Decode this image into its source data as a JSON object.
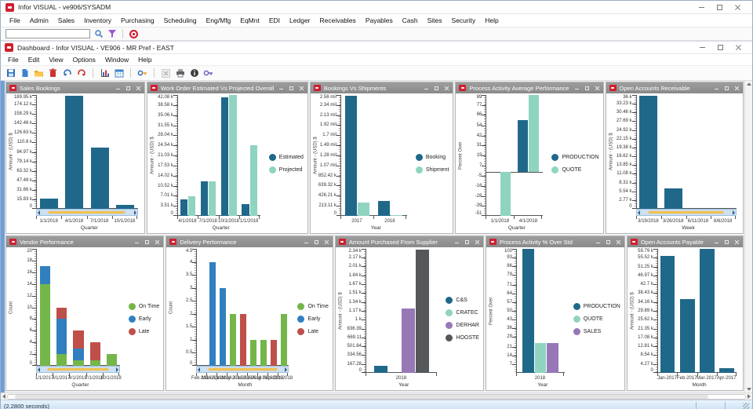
{
  "app": {
    "title": "Infor VISUAL - ve906/SYSADM",
    "menu": [
      "File",
      "Admin",
      "Sales",
      "Inventory",
      "Purchasing",
      "Scheduling",
      "Eng/Mfg",
      "EqMnt",
      "EDI",
      "Ledger",
      "Receivables",
      "Payables",
      "Cash",
      "Sites",
      "Security",
      "Help"
    ]
  },
  "toolbar": {
    "search_value": "",
    "icons": [
      "search-lookup",
      "filter-funnel",
      "record-stop"
    ]
  },
  "dashboard_window": {
    "title": "Dashboard - Infor VISUAL - VE906 - MR Pref - EAST",
    "menu": [
      "File",
      "Edit",
      "View",
      "Options",
      "Window",
      "Help"
    ],
    "toolbar_icons": [
      "save",
      "new-document",
      "open-folder",
      "delete",
      "undo",
      "redo",
      "bar-chart",
      "calendar-grid",
      "key",
      "close-disabled",
      "print",
      "info",
      "key-alt"
    ]
  },
  "status_bar": {
    "text": "(2.2800 seconds)"
  },
  "colors": {
    "infor_red": "#cf2030",
    "panel_title_bg": "#8f8f8f",
    "dark_blue": "#20688a",
    "mint": "#8fd4c1",
    "green": "#74b64a",
    "early_blue": "#3080c0",
    "late_red": "#bf4f49",
    "purple": "#9678b6",
    "dark_gray": "#54585a",
    "scroll_thumb": "#f2c14e"
  },
  "chart_data": [
    {
      "type": "bar",
      "title": "Sales Bookings",
      "ylabel": "Amount - (USD) $",
      "xlabel": "Quarter",
      "ymin": 0,
      "ymax": 189950,
      "yticks": [
        {
          "v": 189950,
          "t": "189.95 k"
        },
        {
          "v": 174120,
          "t": "174.12 k"
        },
        {
          "v": 158290,
          "t": "158.29 k"
        },
        {
          "v": 142460,
          "t": "142.46 k"
        },
        {
          "v": 126630,
          "t": "126.63 k"
        },
        {
          "v": 110800,
          "t": "110.8 k"
        },
        {
          "v": 94970,
          "t": "94.97 k"
        },
        {
          "v": 79140,
          "t": "79.14 k"
        },
        {
          "v": 63320,
          "t": "63.32 k"
        },
        {
          "v": 47490,
          "t": "47.49 k"
        },
        {
          "v": 31660,
          "t": "31.66 k"
        },
        {
          "v": 15830,
          "t": "15.83 k"
        },
        {
          "v": 0,
          "t": "0"
        }
      ],
      "categories": [
        "1/1/2018",
        "4/1/2018",
        "7/1/2018",
        "10/1/2018"
      ],
      "series": [
        {
          "name": "Amount",
          "color": "#20688a",
          "values": [
            17500,
            188500,
            102000,
            7000
          ]
        }
      ],
      "stacked": false,
      "legend": false,
      "scrollbar": true
    },
    {
      "type": "bar",
      "title": "Work Order Estimated Vs Projected Overall",
      "ylabel": "Amount - (USD) $",
      "xlabel": "Quarter",
      "ymin": 0,
      "ymax": 42080,
      "yticks": [
        {
          "v": 42080,
          "t": "42.08 k"
        },
        {
          "v": 38580,
          "t": "38.58 k"
        },
        {
          "v": 35060,
          "t": "35.06 k"
        },
        {
          "v": 31550,
          "t": "31.55 k"
        },
        {
          "v": 28040,
          "t": "28.04 k"
        },
        {
          "v": 24540,
          "t": "24.54 k"
        },
        {
          "v": 21030,
          "t": "21.03 k"
        },
        {
          "v": 17530,
          "t": "17.53 k"
        },
        {
          "v": 14020,
          "t": "14.02 k"
        },
        {
          "v": 10520,
          "t": "10.52 k"
        },
        {
          "v": 7010,
          "t": "7.01 k"
        },
        {
          "v": 3510,
          "t": "3.51 k"
        },
        {
          "v": 0,
          "t": "0"
        }
      ],
      "categories": [
        "4/1/2018",
        "7/1/2018",
        "10/1/2018",
        "1/1/2019"
      ],
      "series": [
        {
          "name": "Estimated",
          "color": "#20688a",
          "values": [
            5700,
            11900,
            41300,
            4200
          ]
        },
        {
          "name": "Projected",
          "color": "#8fd4c1",
          "values": [
            6700,
            11900,
            42000,
            24500
          ]
        }
      ],
      "stacked": false,
      "legend": true,
      "scrollbar": false
    },
    {
      "type": "bar",
      "title": "Bookings Vs Shipments",
      "ylabel": "Amount - (USD) $",
      "xlabel": "Year",
      "ymin": 0,
      "ymax": 2556000,
      "yticks": [
        {
          "v": 2556000,
          "t": "2.56 mil"
        },
        {
          "v": 2344000,
          "t": "2.34 mil"
        },
        {
          "v": 2131000,
          "t": "2.13 mil"
        },
        {
          "v": 1918000,
          "t": "1.92 mil"
        },
        {
          "v": 1705000,
          "t": "1.7 mil"
        },
        {
          "v": 1492000,
          "t": "1.49 mil"
        },
        {
          "v": 1279000,
          "t": "1.28 mil"
        },
        {
          "v": 1066000,
          "t": "1.07 mil"
        },
        {
          "v": 852420,
          "t": "852.42 k"
        },
        {
          "v": 639320,
          "t": "639.32 k"
        },
        {
          "v": 426210,
          "t": "426.21 k"
        },
        {
          "v": 213110,
          "t": "213.11 k"
        },
        {
          "v": 0,
          "t": "0"
        }
      ],
      "categories": [
        "2017",
        "2018"
      ],
      "series": [
        {
          "name": "Booking",
          "color": "#20688a",
          "values": [
            2545000,
            320000
          ]
        },
        {
          "name": "Shipment",
          "color": "#8fd4c1",
          "values": [
            275000,
            10000
          ]
        }
      ],
      "stacked": false,
      "legend": true,
      "scrollbar": false
    },
    {
      "type": "bar",
      "title": "Process Activity Average Performance",
      "ylabel": "Percent Over",
      "xlabel": "Quarter",
      "ymin": -51,
      "ymax": 89,
      "yticks": [
        {
          "v": 89,
          "t": "89"
        },
        {
          "v": 77,
          "t": "77"
        },
        {
          "v": 66,
          "t": "66"
        },
        {
          "v": 54,
          "t": "54"
        },
        {
          "v": 42,
          "t": "42"
        },
        {
          "v": 31,
          "t": "31"
        },
        {
          "v": 19,
          "t": "19"
        },
        {
          "v": 7,
          "t": "7"
        },
        {
          "v": -5,
          "t": "-5"
        },
        {
          "v": -16,
          "t": "-16"
        },
        {
          "v": -28,
          "t": "-28"
        },
        {
          "v": -39,
          "t": "-39"
        },
        {
          "v": -51,
          "t": "-51"
        }
      ],
      "categories": [
        "1/1/2018",
        "4/1/2018"
      ],
      "series": [
        {
          "name": "PRODUCTION",
          "color": "#20688a",
          "values": [
            0,
            60
          ]
        },
        {
          "name": "QUOTE",
          "color": "#8fd4c1",
          "values": [
            -51,
            89
          ]
        }
      ],
      "stacked": false,
      "legend": true,
      "scrollbar": false
    },
    {
      "type": "bar",
      "title": "Open Accounts Receivable",
      "ylabel": "Amount - (USD) $",
      "xlabel": "Week",
      "ymin": 0,
      "ymax": 36000,
      "yticks": [
        {
          "v": 36000,
          "t": "36 k"
        },
        {
          "v": 33230,
          "t": "33.23 k"
        },
        {
          "v": 30460,
          "t": "30.46 k"
        },
        {
          "v": 27690,
          "t": "27.69 k"
        },
        {
          "v": 24920,
          "t": "24.92 k"
        },
        {
          "v": 22150,
          "t": "22.15 k"
        },
        {
          "v": 19380,
          "t": "19.38 k"
        },
        {
          "v": 16620,
          "t": "16.62 k"
        },
        {
          "v": 13850,
          "t": "13.85 k"
        },
        {
          "v": 11080,
          "t": "11.08 k"
        },
        {
          "v": 8310,
          "t": "8.31 k"
        },
        {
          "v": 5540,
          "t": "5.54 k"
        },
        {
          "v": 2770,
          "t": "2.77 k"
        },
        {
          "v": 0,
          "t": "0"
        }
      ],
      "categories": [
        "3/19/2018",
        "3/26/2018",
        "6/11/2018",
        "8/6/2018"
      ],
      "series": [
        {
          "name": "Amount",
          "color": "#20688a",
          "values": [
            35700,
            6400,
            0,
            0
          ]
        }
      ],
      "stacked": false,
      "legend": false,
      "scrollbar": true
    },
    {
      "type": "bar",
      "title": "Vendor Performance",
      "ylabel": "Count",
      "xlabel": "Quarter",
      "ymin": 0,
      "ymax": 20,
      "yticks": [
        {
          "v": 20,
          "t": "20"
        },
        {
          "v": 18,
          "t": "18"
        },
        {
          "v": 16,
          "t": "16"
        },
        {
          "v": 14,
          "t": "14"
        },
        {
          "v": 12,
          "t": "12"
        },
        {
          "v": 10,
          "t": "10"
        },
        {
          "v": 8,
          "t": "8"
        },
        {
          "v": 6,
          "t": "6"
        },
        {
          "v": 4,
          "t": "4"
        },
        {
          "v": 2,
          "t": "2"
        },
        {
          "v": 0,
          "t": "0"
        }
      ],
      "categories": [
        "1/1/2017",
        "4/1/2017",
        "4/1/2018",
        "7/1/2018",
        "10/1/2018"
      ],
      "series": [
        {
          "name": "On Time",
          "color": "#74b64a",
          "values": [
            14,
            2,
            1,
            1,
            2
          ]
        },
        {
          "name": "Early",
          "color": "#3080c0",
          "values": [
            3,
            6,
            2,
            0,
            0
          ]
        },
        {
          "name": "Late",
          "color": "#bf4f49",
          "values": [
            0,
            2,
            3,
            3,
            0
          ]
        }
      ],
      "stacked": true,
      "legend": true,
      "scrollbar": true
    },
    {
      "type": "bar",
      "title": "Delivery Performance",
      "ylabel": "Count",
      "xlabel": "Month",
      "ymin": 0,
      "ymax": 4.5,
      "yticks": [
        {
          "v": 4.5,
          "t": "4.5"
        },
        {
          "v": 4,
          "t": "4"
        },
        {
          "v": 3.5,
          "t": "3.5"
        },
        {
          "v": 3,
          "t": "3"
        },
        {
          "v": 2.5,
          "t": "2.5"
        },
        {
          "v": 2,
          "t": "2"
        },
        {
          "v": 1.5,
          "t": "1.5"
        },
        {
          "v": 1,
          "t": "1"
        },
        {
          "v": 0.5,
          "t": "0.5"
        },
        {
          "v": 0,
          "t": "0"
        }
      ],
      "categories": [
        "Feb-2018",
        "Mar-2018",
        "Apr-2018",
        "May-2018",
        "Jun-2018",
        "Jul-2018",
        "Aug-2018",
        "Sep-2018",
        "Oct-2018"
      ],
      "series": [
        {
          "name": "On Time",
          "color": "#74b64a",
          "values": [
            0,
            0,
            0,
            2,
            0,
            1,
            1,
            0,
            2
          ]
        },
        {
          "name": "Early",
          "color": "#3080c0",
          "values": [
            0,
            4,
            3,
            0,
            0,
            0,
            0,
            0,
            0
          ]
        },
        {
          "name": "Late",
          "color": "#bf4f49",
          "values": [
            0,
            0,
            0,
            0,
            2,
            0,
            0,
            1,
            0
          ]
        }
      ],
      "stacked": true,
      "legend": true,
      "scrollbar": true
    },
    {
      "type": "bar",
      "title": "Amount Purchased From Supplier",
      "ylabel": "Amount - (USD) $",
      "xlabel": "Year",
      "ymin": 0,
      "ymax": 2340,
      "yticks": [
        {
          "v": 2340,
          "t": "2.34 k"
        },
        {
          "v": 2170,
          "t": "2.17 k"
        },
        {
          "v": 2010,
          "t": "2.01 k"
        },
        {
          "v": 1840,
          "t": "1.84 k"
        },
        {
          "v": 1670,
          "t": "1.67 k"
        },
        {
          "v": 1510,
          "t": "1.51 k"
        },
        {
          "v": 1340,
          "t": "1.34 k"
        },
        {
          "v": 1170,
          "t": "1.17 k"
        },
        {
          "v": 1000,
          "t": "1 k"
        },
        {
          "v": 836.39,
          "t": "836.39"
        },
        {
          "v": 669.11,
          "t": "669.11"
        },
        {
          "v": 501.84,
          "t": "501.84"
        },
        {
          "v": 334.56,
          "t": "334.56"
        },
        {
          "v": 167.28,
          "t": "167.28"
        },
        {
          "v": 0,
          "t": "0"
        }
      ],
      "categories": [
        "2018"
      ],
      "series": [
        {
          "name": "C&S",
          "color": "#20688a",
          "values": [
            140
          ]
        },
        {
          "name": "CRATEC",
          "color": "#8fd4c1",
          "values": [
            0
          ]
        },
        {
          "name": "DERHAR",
          "color": "#9678b6",
          "values": [
            1210
          ]
        },
        {
          "name": "HOOSTE",
          "color": "#54585a",
          "values": [
            2330
          ]
        }
      ],
      "stacked": false,
      "legend": true,
      "scrollbar": false
    },
    {
      "type": "bar",
      "title": "Process Activity % Over Std",
      "ylabel": "Percent Over",
      "xlabel": "Year",
      "ymin": 0,
      "ymax": 100,
      "yticks": [
        {
          "v": 100,
          "t": "100"
        },
        {
          "v": 93,
          "t": "93"
        },
        {
          "v": 86,
          "t": "86"
        },
        {
          "v": 79,
          "t": "79"
        },
        {
          "v": 71,
          "t": "71"
        },
        {
          "v": 64,
          "t": "64"
        },
        {
          "v": 57,
          "t": "57"
        },
        {
          "v": 50,
          "t": "50"
        },
        {
          "v": 43,
          "t": "43"
        },
        {
          "v": 36,
          "t": "36"
        },
        {
          "v": 29,
          "t": "29"
        },
        {
          "v": 21,
          "t": "21"
        },
        {
          "v": 14,
          "t": "14"
        },
        {
          "v": 7,
          "t": "7"
        }
      ],
      "categories": [
        "2018"
      ],
      "series": [
        {
          "name": "PRODUCTION",
          "color": "#20688a",
          "values": [
            100
          ]
        },
        {
          "name": "QUOTE",
          "color": "#8fd4c1",
          "values": [
            24
          ]
        },
        {
          "name": "SALES",
          "color": "#9678b6",
          "values": [
            24
          ]
        }
      ],
      "stacked": false,
      "legend": true,
      "scrollbar": false
    },
    {
      "type": "bar",
      "title": "Open Accounts Payable",
      "ylabel": "Amount - (USD) $",
      "xlabel": "Month",
      "ymin": 0,
      "ymax": 59790,
      "yticks": [
        {
          "v": 59790,
          "t": "59.79 k"
        },
        {
          "v": 55520,
          "t": "55.52 k"
        },
        {
          "v": 51250,
          "t": "51.25 k"
        },
        {
          "v": 46970,
          "t": "46.97 k"
        },
        {
          "v": 42700,
          "t": "42.7 k"
        },
        {
          "v": 38430,
          "t": "38.43 k"
        },
        {
          "v": 34160,
          "t": "34.16 k"
        },
        {
          "v": 29890,
          "t": "29.89 k"
        },
        {
          "v": 25620,
          "t": "25.62 k"
        },
        {
          "v": 21350,
          "t": "21.35 k"
        },
        {
          "v": 17080,
          "t": "17.08 k"
        },
        {
          "v": 12810,
          "t": "12.81 k"
        },
        {
          "v": 8540,
          "t": "8.54 k"
        },
        {
          "v": 4270,
          "t": "4.27 k"
        },
        {
          "v": 0,
          "t": "0"
        }
      ],
      "categories": [
        "Jan-2017",
        "Feb-2017",
        "Mar-2017",
        "Apr-2017"
      ],
      "series": [
        {
          "name": "Amount",
          "color": "#20688a",
          "values": [
            56200,
            35600,
            59700,
            2100
          ]
        }
      ],
      "stacked": false,
      "legend": false,
      "scrollbar": false
    }
  ]
}
